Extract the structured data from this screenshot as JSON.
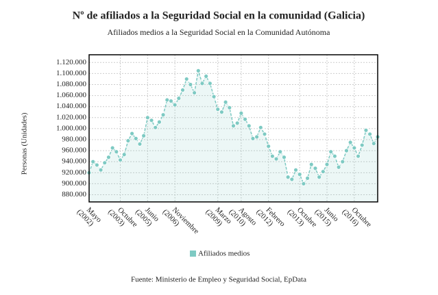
{
  "chart_data": {
    "type": "line",
    "title": "Nº de afiliados a la Seguridad Social en la comunidad (Galicia)",
    "subtitle": "Afiliados medios a la Seguridad Social en la Comunidad Autónoma",
    "y_label": "Personas (Unidades)",
    "source": "Fuente: Ministerio de Empleo y Seguridad Social, EpData",
    "categories": [
      "Mayo (2002)",
      null,
      null,
      null,
      null,
      null,
      null,
      null,
      "Octubre (2003)",
      null,
      null,
      null,
      null,
      null,
      null,
      "Junio (2005)",
      null,
      null,
      null,
      null,
      null,
      null,
      "Noviembre (2006)",
      null,
      null,
      null,
      null,
      null,
      null,
      null,
      null,
      null,
      null,
      "Marzo (2009)",
      null,
      null,
      null,
      null,
      null,
      "Agosto (2010)",
      null,
      null,
      null,
      null,
      null,
      null,
      "Febrero (2012)",
      null,
      null,
      null,
      null,
      null,
      null,
      null,
      "Octubre (2013)",
      null,
      null,
      null,
      null,
      null,
      null,
      "Junio (2015)",
      null,
      null,
      null,
      null,
      null,
      null,
      "Octubre (2016)",
      null,
      null,
      null,
      null,
      null,
      null
    ],
    "series": [
      {
        "name": "Afiliados medios",
        "color": "#7ecac3",
        "values": [
          920000,
          940000,
          934000,
          925000,
          938000,
          948000,
          965000,
          958000,
          943000,
          953000,
          978000,
          991000,
          982000,
          972000,
          987000,
          1020000,
          1015000,
          1002000,
          1012000,
          1025000,
          1052000,
          1050000,
          1043000,
          1055000,
          1070000,
          1090000,
          1080000,
          1065000,
          1105000,
          1082000,
          1095000,
          1082000,
          1058000,
          1035000,
          1030000,
          1048000,
          1038000,
          1005000,
          1010000,
          1028000,
          1017000,
          1005000,
          982000,
          985000,
          1002000,
          990000,
          968000,
          950000,
          945000,
          958000,
          948000,
          912000,
          908000,
          925000,
          917000,
          900000,
          910000,
          935000,
          928000,
          912000,
          922000,
          935000,
          958000,
          950000,
          930000,
          940000,
          960000,
          975000,
          965000,
          950000,
          970000,
          997000,
          990000,
          973000,
          985000
        ]
      }
    ],
    "ylim": [
      867000,
      1134000
    ],
    "yticks": [
      {
        "value": 880000,
        "label": "880.000"
      },
      {
        "value": 900000,
        "label": "900.000"
      },
      {
        "value": 920000,
        "label": "920.000"
      },
      {
        "value": 940000,
        "label": "940.000"
      },
      {
        "value": 960000,
        "label": "960.000"
      },
      {
        "value": 980000,
        "label": "980.000"
      },
      {
        "value": 1000000,
        "label": "1.000.000"
      },
      {
        "value": 1020000,
        "label": "1.020.000"
      },
      {
        "value": 1040000,
        "label": "1.040.000"
      },
      {
        "value": 1060000,
        "label": "1.060.000"
      },
      {
        "value": 1080000,
        "label": "1.080.000"
      },
      {
        "value": 1100000,
        "label": "1.100.000"
      },
      {
        "value": 1120000,
        "label": "1.120.000"
      }
    ],
    "grid": true
  }
}
